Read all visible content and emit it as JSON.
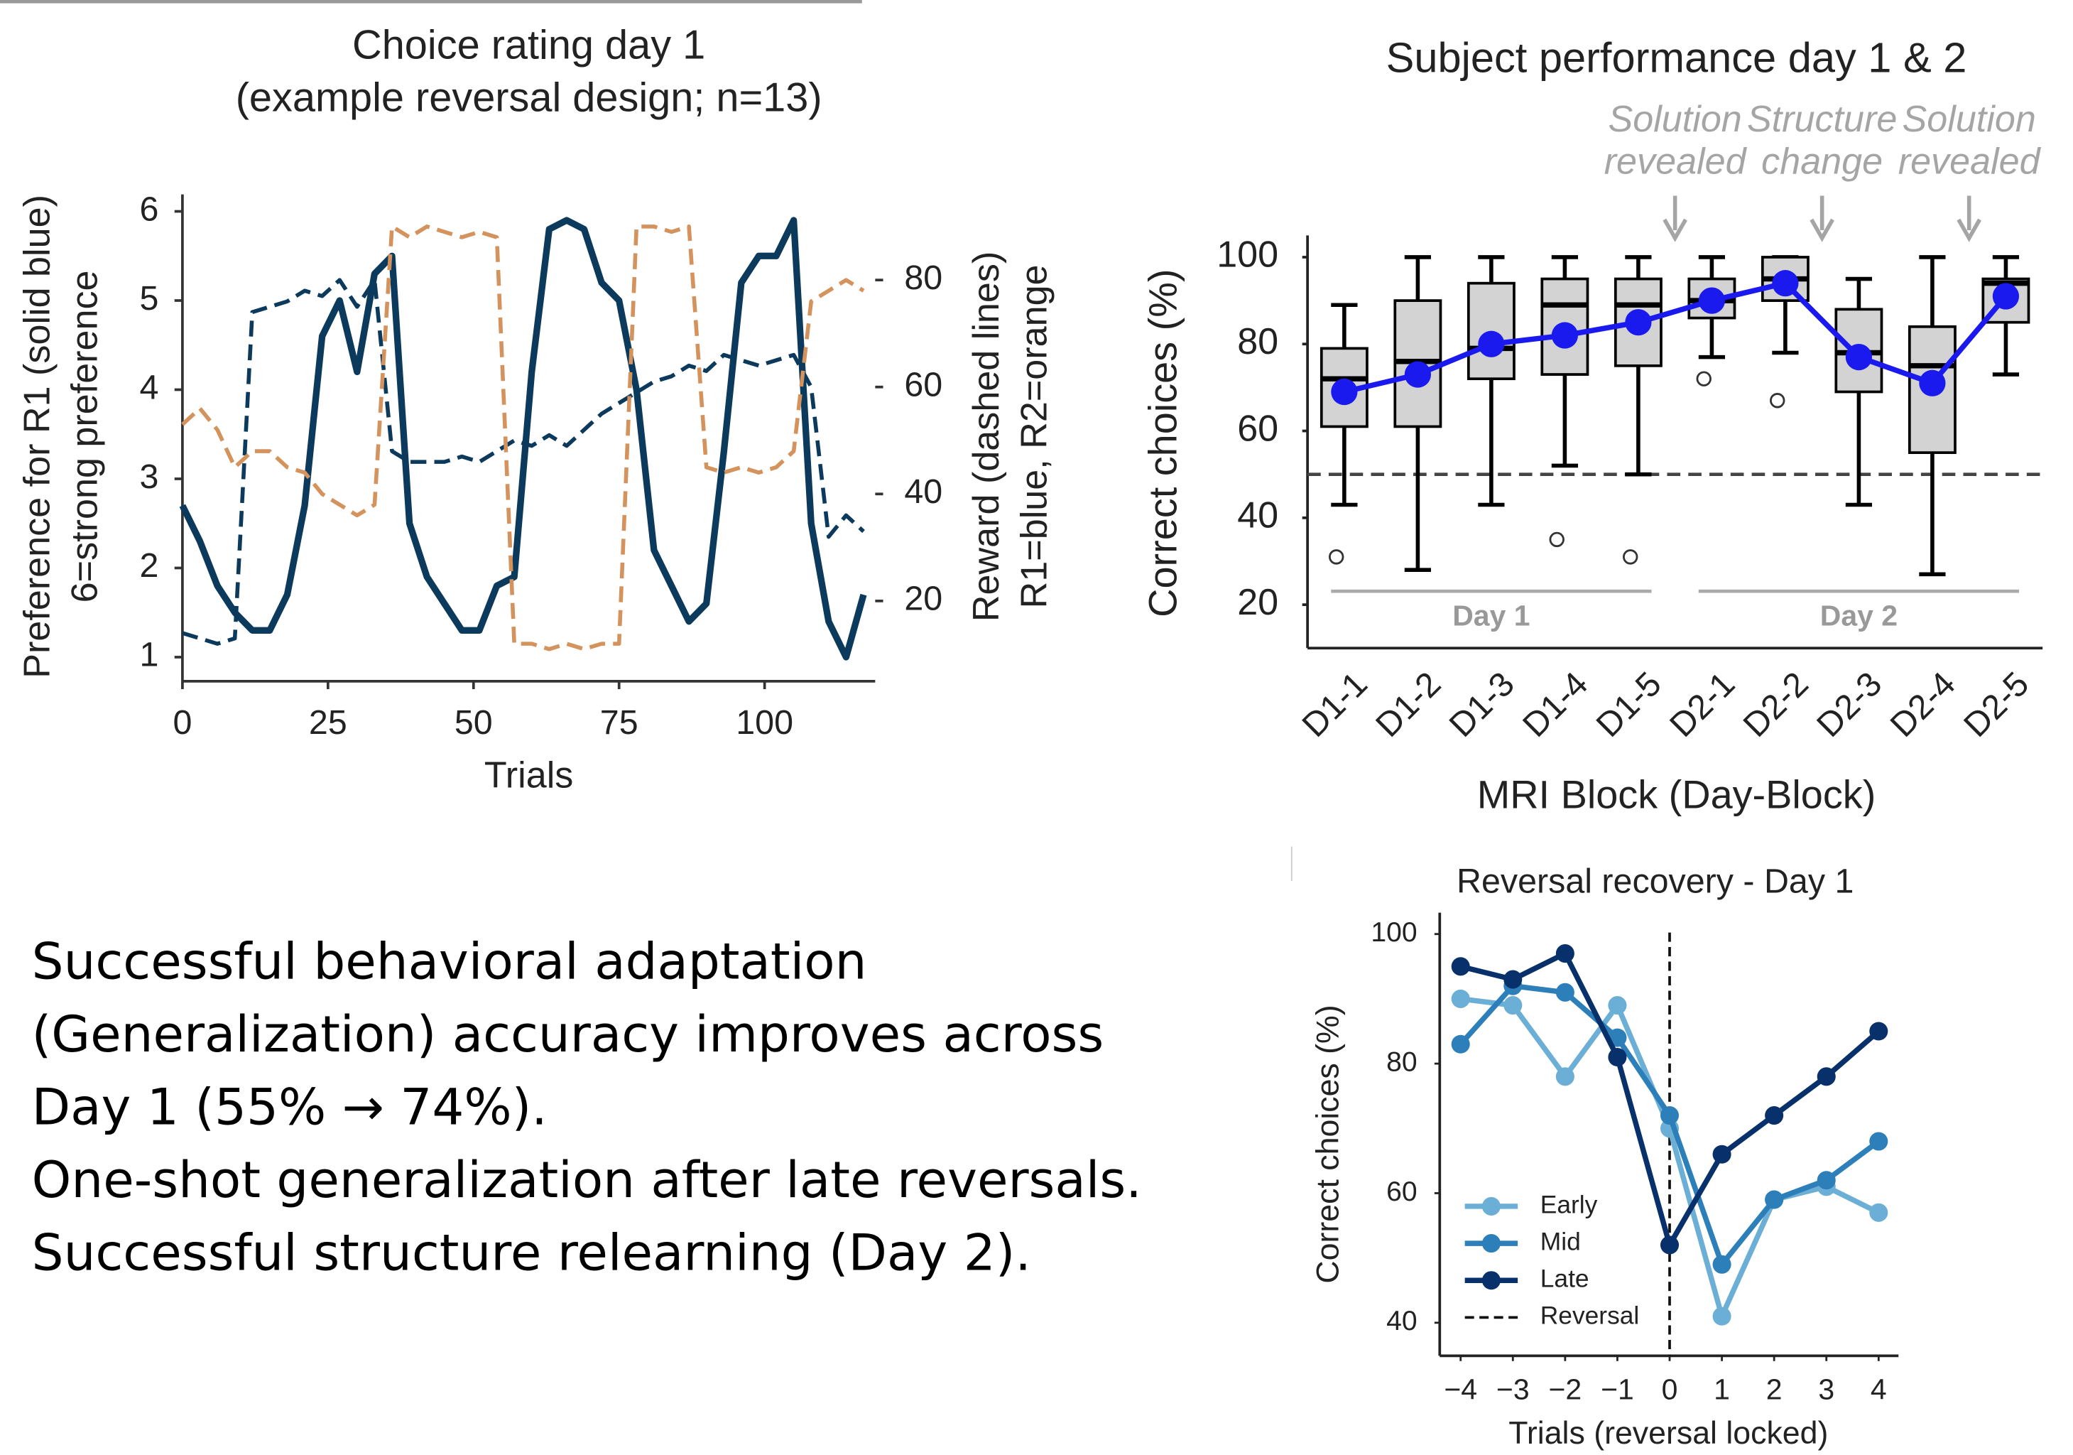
{
  "chart_data": [
    {
      "type": "line",
      "title": "Choice rating day 1",
      "subtitle": "(example reversal design; n=13)",
      "xlabel": "Trials",
      "ylabel": [
        "Preference for R1 (solid blue)",
        "6=strong preference"
      ],
      "y2label": [
        "Reward (dashed lines)",
        "R1=blue, R2=orange"
      ],
      "x": [
        0,
        3,
        6,
        9,
        12,
        15,
        18,
        21,
        24,
        27,
        30,
        33,
        36,
        39,
        42,
        45,
        48,
        51,
        54,
        57,
        60,
        63,
        66,
        69,
        72,
        75,
        78,
        81,
        84,
        87,
        90,
        93,
        96,
        99,
        102,
        105,
        108,
        111,
        114,
        117
      ],
      "series": [
        {
          "color": "#0b3a5c",
          "style": "solid",
          "axis": "y",
          "values": [
            2.7,
            2.3,
            1.8,
            1.5,
            1.3,
            1.3,
            1.7,
            2.7,
            4.6,
            5.0,
            4.2,
            5.3,
            5.5,
            2.5,
            1.9,
            1.6,
            1.3,
            1.3,
            1.8,
            1.9,
            4.2,
            5.8,
            5.9,
            5.8,
            5.2,
            5.0,
            4.0,
            2.2,
            1.8,
            1.4,
            1.6,
            3.3,
            5.2,
            5.5,
            5.5,
            5.9,
            2.5,
            1.4,
            1.0,
            1.7
          ]
        },
        {
          "color": "#0b3a5c",
          "style": "dashed",
          "axis": "y2",
          "values": [
            14,
            13,
            12,
            13,
            74,
            75,
            76,
            78,
            77,
            80,
            75,
            80,
            48,
            46,
            46,
            46,
            47,
            46,
            48,
            50,
            49,
            51,
            49,
            52,
            55,
            57,
            59,
            61,
            62,
            64,
            63,
            66,
            65,
            64,
            65,
            66,
            60,
            32,
            36,
            33
          ]
        },
        {
          "color": "#d4925c",
          "style": "dashed",
          "axis": "y2",
          "values": [
            53,
            56,
            52,
            45,
            48,
            48,
            45,
            44,
            40,
            38,
            36,
            38,
            90,
            88,
            90,
            89,
            88,
            89,
            88,
            12,
            12,
            11,
            12,
            11,
            12,
            12,
            90,
            90,
            89,
            90,
            45,
            44,
            45,
            44,
            45,
            48,
            76,
            78,
            80,
            78
          ]
        }
      ],
      "xlim": [
        0,
        119
      ],
      "xticks": [
        0,
        25,
        50,
        75,
        100
      ],
      "ylim": [
        0.73,
        6.19
      ],
      "yticks": [
        1,
        2,
        3,
        4,
        5,
        6
      ],
      "y2lim": [
        5,
        96
      ],
      "y2ticks": [
        20,
        40,
        60,
        80
      ]
    },
    {
      "type": "box",
      "title": "Subject performance day 1 & 2",
      "xlabel": "MRI Block (Day-Block)",
      "ylabel": "Correct choices (%)",
      "categories": [
        "D1-1",
        "D1-2",
        "D1-3",
        "D1-4",
        "D1-5",
        "D2-1",
        "D2-2",
        "D2-3",
        "D2-4",
        "D2-5"
      ],
      "boxes": [
        {
          "whislo": 43,
          "q1": 61,
          "med": 72,
          "q3": 79,
          "whishi": 89,
          "fliers": [
            31
          ]
        },
        {
          "whislo": 28,
          "q1": 61,
          "med": 76,
          "q3": 90,
          "whishi": 100,
          "fliers": []
        },
        {
          "whislo": 43,
          "q1": 72,
          "med": 79,
          "q3": 94,
          "whishi": 100,
          "fliers": []
        },
        {
          "whislo": 52,
          "q1": 73,
          "med": 89,
          "q3": 95,
          "whishi": 100,
          "fliers": [
            35
          ]
        },
        {
          "whislo": 50,
          "q1": 75,
          "med": 89,
          "q3": 95,
          "whishi": 100,
          "fliers": [
            31
          ]
        },
        {
          "whislo": 77,
          "q1": 86,
          "med": 90,
          "q3": 95,
          "whishi": 100,
          "fliers": [
            72
          ]
        },
        {
          "whislo": 78,
          "q1": 90,
          "med": 95,
          "q3": 100,
          "whishi": 100,
          "fliers": [
            67
          ]
        },
        {
          "whislo": 43,
          "q1": 69,
          "med": 78,
          "q3": 88,
          "whishi": 95,
          "fliers": []
        },
        {
          "whislo": 27,
          "q1": 55,
          "med": 75,
          "q3": 84,
          "whishi": 100,
          "fliers": []
        },
        {
          "whislo": 73,
          "q1": 85,
          "med": 94,
          "q3": 95,
          "whishi": 100,
          "fliers": []
        }
      ],
      "means": [
        69,
        73,
        80,
        82,
        85,
        90,
        94,
        77,
        71,
        91
      ],
      "mean_color": "#1a1aee",
      "box_color": "#d3d3d3",
      "hline": 50,
      "annotations": [
        [
          "Solution",
          "revealed"
        ],
        [
          "Structure",
          "change"
        ],
        [
          "Solution",
          "revealed"
        ]
      ],
      "groups": [
        "Day 1",
        "Day 2"
      ],
      "ylim": [
        10,
        105
      ],
      "yticks": [
        20,
        40,
        60,
        80,
        100
      ]
    },
    {
      "type": "line",
      "title": "Reversal recovery - Day 1",
      "xlabel": "Trials (reversal locked)",
      "ylabel": "Correct choices (%)",
      "x": [
        -4,
        -3,
        -2,
        -1,
        0,
        1,
        2,
        3,
        4
      ],
      "series": [
        {
          "name": "Early",
          "color": "#6baed6",
          "values": [
            90,
            89,
            78,
            89,
            70,
            41,
            59,
            61,
            57
          ]
        },
        {
          "name": "Mid",
          "color": "#2c7fb8",
          "values": [
            83,
            92,
            91,
            84,
            72,
            49,
            59,
            62,
            68
          ]
        },
        {
          "name": "Late",
          "color": "#08306b",
          "values": [
            95,
            93,
            97,
            81,
            52,
            66,
            72,
            78,
            85
          ]
        }
      ],
      "vline": {
        "name": "Reversal",
        "value": 0
      },
      "legend": "lower left",
      "xlim": [
        -4.4,
        4.38
      ],
      "xticks": [
        {
          "value": -4,
          "label": "−4"
        },
        {
          "value": -3,
          "label": "−3"
        },
        {
          "value": -2,
          "label": "−2"
        },
        {
          "value": -1,
          "label": "−1"
        },
        0,
        1,
        2,
        3,
        4
      ],
      "ylim": [
        34.9,
        103.3
      ],
      "yticks": [
        40,
        60,
        80,
        100
      ]
    }
  ],
  "notes": [
    "Successful behavioral adaptation (Generalization) accuracy improves across Day 1 (55% → 74%).",
    "One-shot generalization after late reversals.",
    "Successful structure relearning (Day 2)."
  ]
}
